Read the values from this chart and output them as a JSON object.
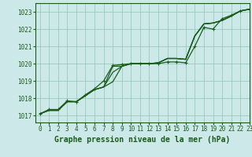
{
  "title": "Graphe pression niveau de la mer (hPa)",
  "bg_color": "#cce8e8",
  "grid_color": "#99ccbb",
  "line_color": "#1a5c1a",
  "xlim": [
    -0.5,
    23
  ],
  "ylim": [
    1016.6,
    1023.5
  ],
  "xticks": [
    0,
    1,
    2,
    3,
    4,
    5,
    6,
    7,
    8,
    9,
    10,
    11,
    12,
    13,
    14,
    15,
    16,
    17,
    18,
    19,
    20,
    21,
    22,
    23
  ],
  "yticks": [
    1017,
    1018,
    1019,
    1020,
    1021,
    1022,
    1023
  ],
  "series1": [
    1017.1,
    1017.3,
    1017.3,
    1017.8,
    1017.8,
    1018.15,
    1018.5,
    1018.65,
    1019.85,
    1019.85,
    1020.0,
    1020.0,
    1020.0,
    1020.05,
    1020.3,
    1020.3,
    1020.25,
    1021.6,
    1022.3,
    1022.35,
    1022.5,
    1022.75,
    1023.05,
    1023.15
  ],
  "series2": [
    1017.1,
    1017.3,
    1017.3,
    1017.8,
    1017.8,
    1018.15,
    1018.5,
    1018.65,
    1018.95,
    1019.85,
    1020.0,
    1020.0,
    1020.0,
    1020.05,
    1020.3,
    1020.3,
    1020.25,
    1021.6,
    1022.3,
    1022.35,
    1022.5,
    1022.75,
    1023.05,
    1023.15
  ],
  "series3": [
    1017.1,
    1017.3,
    1017.3,
    1017.8,
    1017.8,
    1018.15,
    1018.5,
    1018.65,
    1019.5,
    1019.85,
    1020.0,
    1020.0,
    1020.0,
    1020.05,
    1020.3,
    1020.3,
    1020.25,
    1021.6,
    1022.3,
    1022.35,
    1022.5,
    1022.75,
    1023.05,
    1023.15
  ],
  "series4_marked": [
    1017.1,
    1017.35,
    1017.35,
    1017.85,
    1017.8,
    1018.2,
    1018.55,
    1019.0,
    1019.9,
    1019.95,
    1020.0,
    1020.0,
    1020.0,
    1020.0,
    1020.1,
    1020.1,
    1020.05,
    1021.0,
    1022.1,
    1022.0,
    1022.6,
    1022.8,
    1023.05,
    1023.15
  ],
  "tick_fontsize": 5.5,
  "xlabel_fontsize": 7,
  "linewidth": 0.9
}
